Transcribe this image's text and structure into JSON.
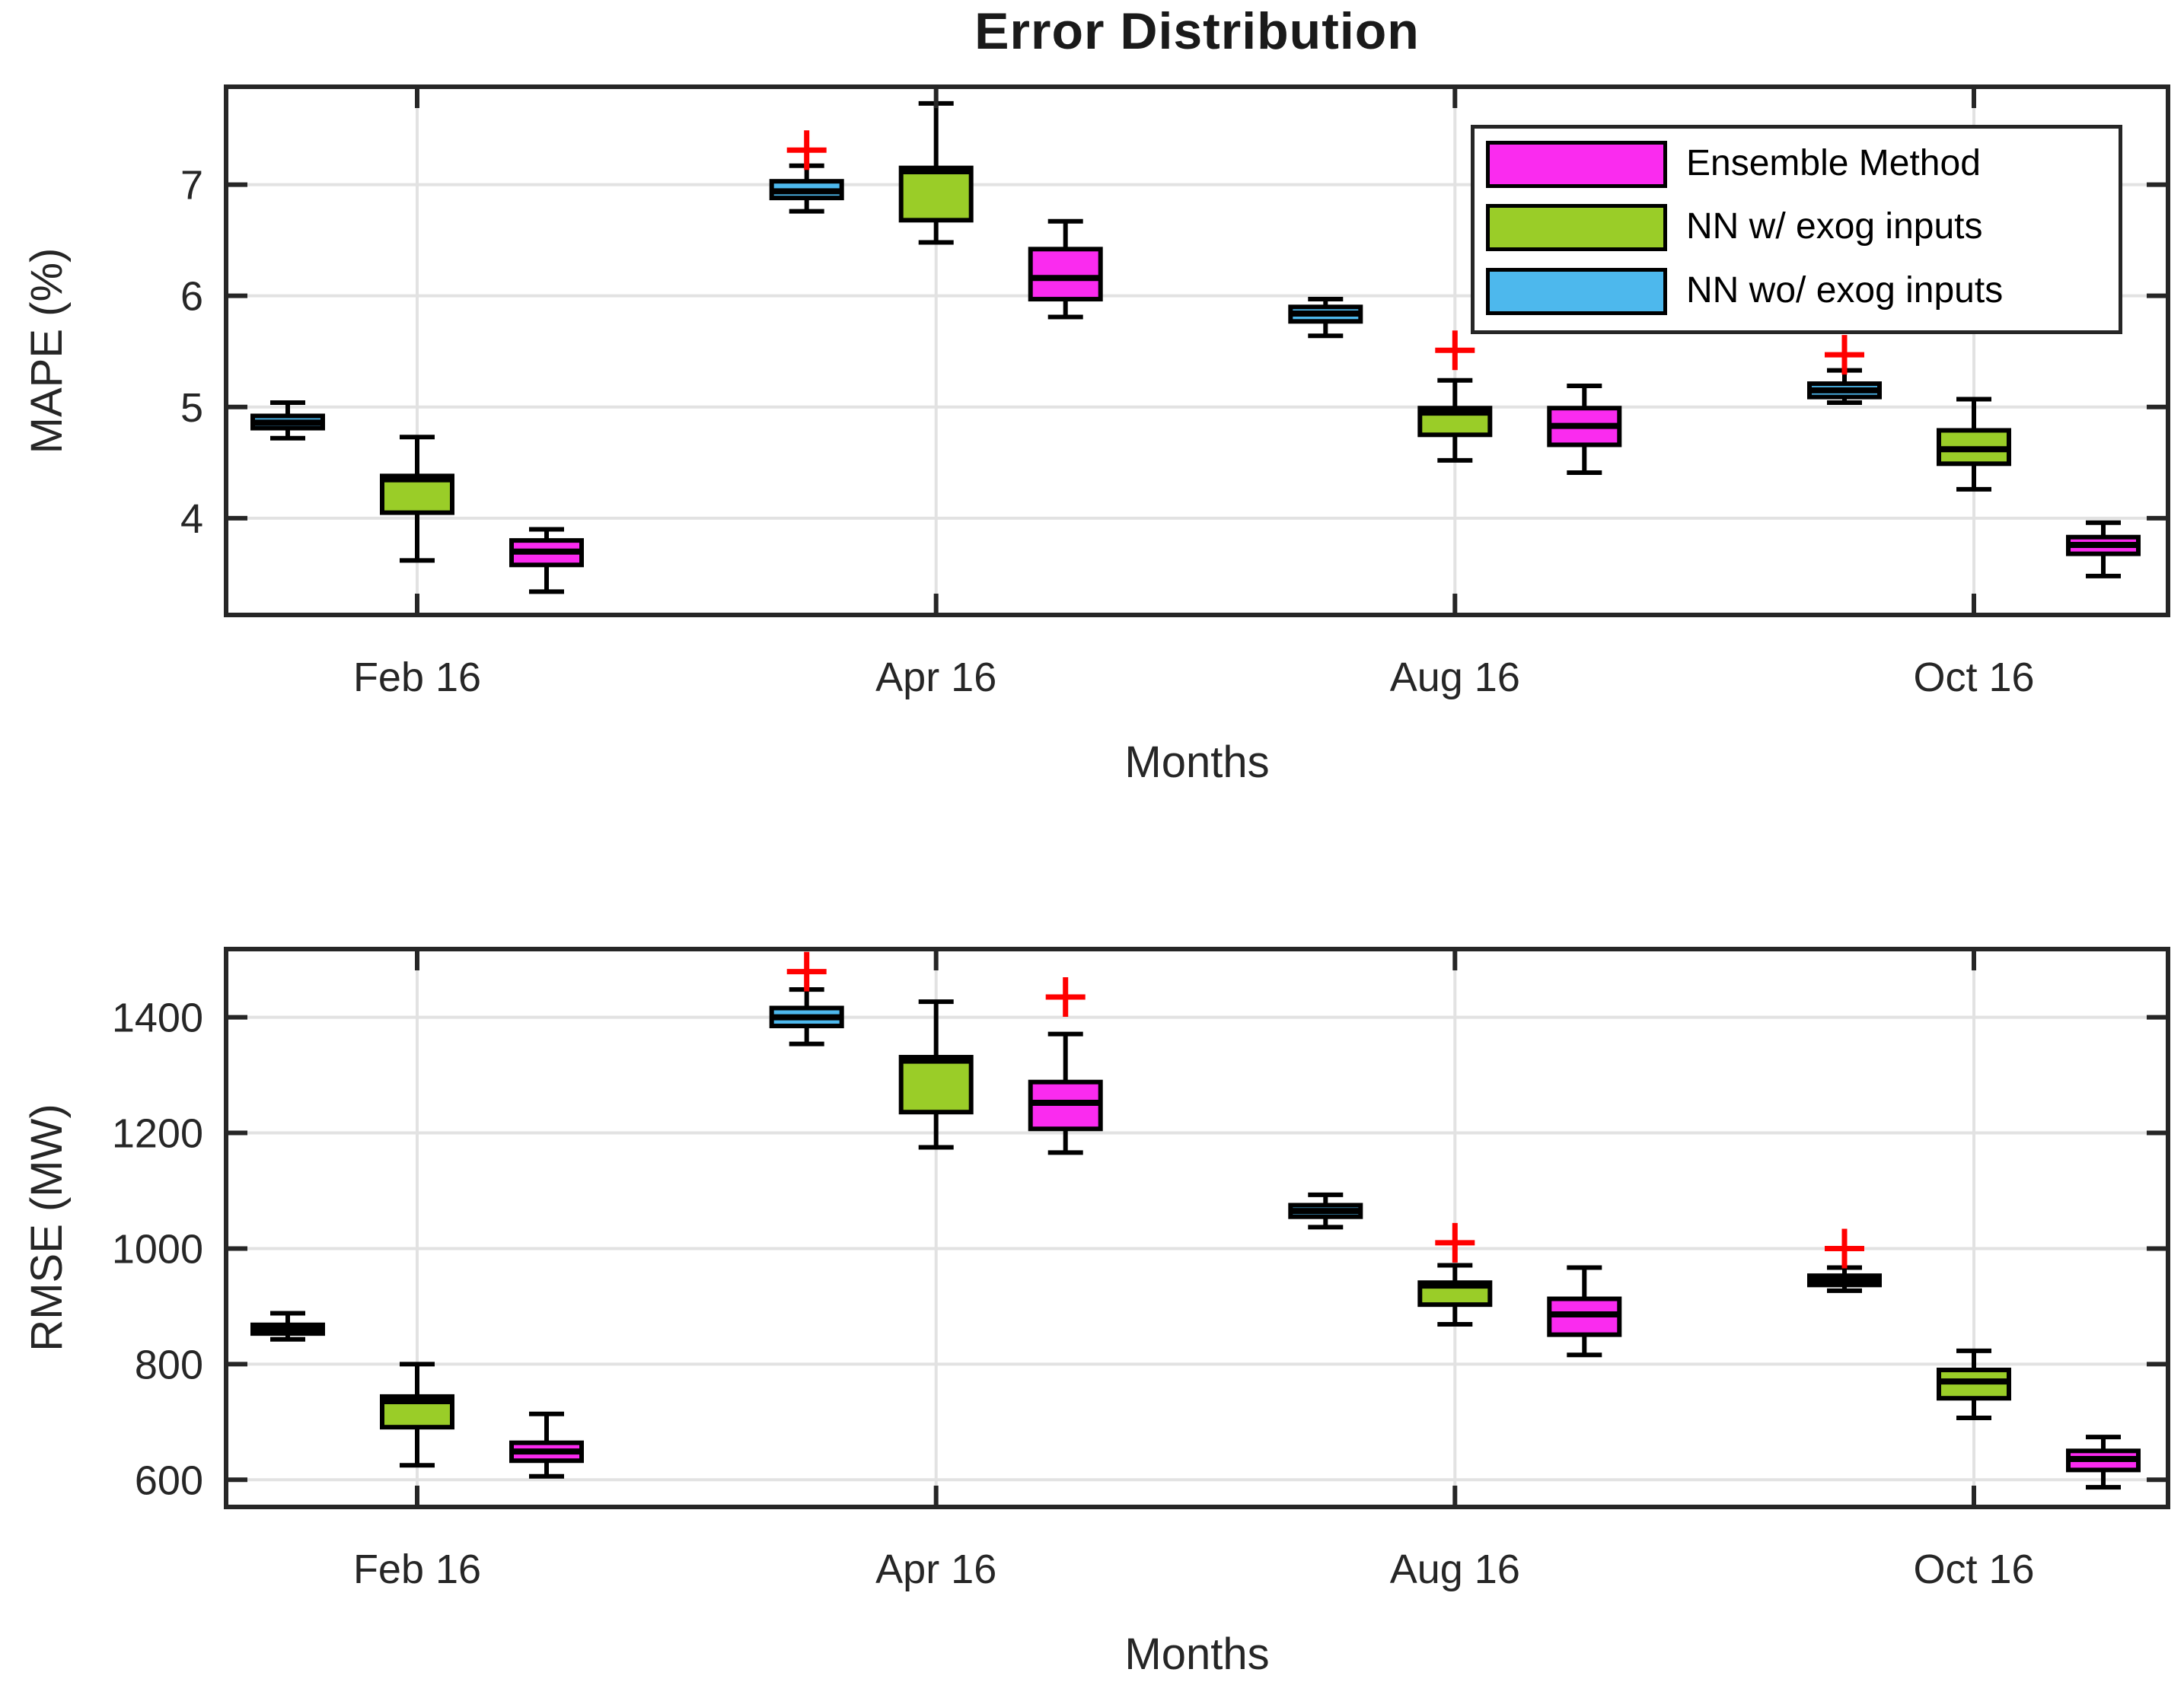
{
  "figure_title": "Error Distribution",
  "legend": {
    "position": "northeast",
    "items": [
      {
        "label": "Ensemble Method",
        "color": "#FA2BEF"
      },
      {
        "label": "NN w/ exog inputs",
        "color": "#9ACD28"
      },
      {
        "label": "NN wo/ exog inputs",
        "color": "#4DB8ED"
      }
    ]
  },
  "colors": {
    "outlier": "#FF0000",
    "box_edge": "#000000",
    "frame": "#262626",
    "grid": "#E2E2E2",
    "text": "#262626"
  },
  "chart_data": [
    {
      "type": "boxplot",
      "title": "Error Distribution",
      "xlabel": "Months",
      "ylabel": "MAPE (%)",
      "categories": [
        "Feb 16",
        "Apr 16",
        "Aug 16",
        "Oct 16"
      ],
      "yticks": [
        4,
        5,
        6,
        7
      ],
      "ylim": [
        3.13,
        7.88
      ],
      "grid": true,
      "series": [
        {
          "name": "NN wo/ exog inputs",
          "color": "#4DB8ED",
          "boxes": [
            {
              "category": "Feb 16",
              "whisker_low": 4.72,
              "q1": 4.81,
              "median": 4.86,
              "q3": 4.92,
              "whisker_high": 5.04,
              "outliers": []
            },
            {
              "category": "Apr 16",
              "whisker_low": 6.76,
              "q1": 6.88,
              "median": 6.94,
              "q3": 7.03,
              "whisker_high": 7.17,
              "outliers": [
                7.31
              ]
            },
            {
              "category": "Aug 16",
              "whisker_low": 5.64,
              "q1": 5.77,
              "median": 5.84,
              "q3": 5.9,
              "whisker_high": 5.97,
              "outliers": []
            },
            {
              "category": "Oct 16",
              "whisker_low": 5.04,
              "q1": 5.09,
              "median": 5.15,
              "q3": 5.21,
              "whisker_high": 5.33,
              "outliers": [
                5.47
              ]
            }
          ]
        },
        {
          "name": "NN w/ exog inputs",
          "color": "#9ACD28",
          "boxes": [
            {
              "category": "Feb 16",
              "whisker_low": 3.62,
              "q1": 4.05,
              "median": 4.35,
              "q3": 4.38,
              "whisker_high": 4.73,
              "outliers": []
            },
            {
              "category": "Apr 16",
              "whisker_low": 6.48,
              "q1": 6.68,
              "median": 7.12,
              "q3": 7.15,
              "whisker_high": 7.73,
              "outliers": []
            },
            {
              "category": "Aug 16",
              "whisker_low": 4.52,
              "q1": 4.75,
              "median": 4.95,
              "q3": 4.99,
              "whisker_high": 5.24,
              "outliers": [
                5.51
              ]
            },
            {
              "category": "Oct 16",
              "whisker_low": 4.26,
              "q1": 4.49,
              "median": 4.62,
              "q3": 4.79,
              "whisker_high": 5.07,
              "outliers": []
            }
          ]
        },
        {
          "name": "Ensemble Method",
          "color": "#FA2BEF",
          "boxes": [
            {
              "category": "Feb 16",
              "whisker_low": 3.34,
              "q1": 3.58,
              "median": 3.7,
              "q3": 3.8,
              "whisker_high": 3.9,
              "outliers": []
            },
            {
              "category": "Apr 16",
              "whisker_low": 5.81,
              "q1": 5.97,
              "median": 6.16,
              "q3": 6.42,
              "whisker_high": 6.67,
              "outliers": []
            },
            {
              "category": "Aug 16",
              "whisker_low": 4.41,
              "q1": 4.66,
              "median": 4.83,
              "q3": 4.99,
              "whisker_high": 5.19,
              "outliers": []
            },
            {
              "category": "Oct 16",
              "whisker_low": 3.48,
              "q1": 3.68,
              "median": 3.76,
              "q3": 3.83,
              "whisker_high": 3.96,
              "outliers": []
            }
          ]
        }
      ]
    },
    {
      "type": "boxplot",
      "title": "",
      "xlabel": "Months",
      "ylabel": "RMSE (MW)",
      "categories": [
        "Feb 16",
        "Apr 16",
        "Aug 16",
        "Oct 16"
      ],
      "yticks": [
        600,
        800,
        1000,
        1200,
        1400
      ],
      "ylim": [
        553,
        1518
      ],
      "grid": true,
      "series": [
        {
          "name": "NN wo/ exog inputs",
          "color": "#4DB8ED",
          "boxes": [
            {
              "category": "Feb 16",
              "whisker_low": 843,
              "q1": 853,
              "median": 861,
              "q3": 868,
              "whisker_high": 888,
              "outliers": []
            },
            {
              "category": "Apr 16",
              "whisker_low": 1354,
              "q1": 1385,
              "median": 1400,
              "q3": 1416,
              "whisker_high": 1448,
              "outliers": [
                1479
              ]
            },
            {
              "category": "Aug 16",
              "whisker_low": 1037,
              "q1": 1055,
              "median": 1065,
              "q3": 1075,
              "whisker_high": 1093,
              "outliers": []
            },
            {
              "category": "Oct 16",
              "whisker_low": 927,
              "q1": 937,
              "median": 946,
              "q3": 953,
              "whisker_high": 967,
              "outliers": [
                1000
              ]
            }
          ]
        },
        {
          "name": "NN w/ exog inputs",
          "color": "#9ACD28",
          "boxes": [
            {
              "category": "Feb 16",
              "whisker_low": 625,
              "q1": 691,
              "median": 736,
              "q3": 744,
              "whisker_high": 800,
              "outliers": []
            },
            {
              "category": "Apr 16",
              "whisker_low": 1175,
              "q1": 1236,
              "median": 1325,
              "q3": 1331,
              "whisker_high": 1427,
              "outliers": []
            },
            {
              "category": "Aug 16",
              "whisker_low": 869,
              "q1": 903,
              "median": 936,
              "q3": 941,
              "whisker_high": 971,
              "outliers": [
                1010
              ]
            },
            {
              "category": "Oct 16",
              "whisker_low": 707,
              "q1": 741,
              "median": 770,
              "q3": 790,
              "whisker_high": 823,
              "outliers": []
            }
          ]
        },
        {
          "name": "Ensemble Method",
          "color": "#FA2BEF",
          "boxes": [
            {
              "category": "Feb 16",
              "whisker_low": 606,
              "q1": 633,
              "median": 649,
              "q3": 664,
              "whisker_high": 714,
              "outliers": []
            },
            {
              "category": "Apr 16",
              "whisker_low": 1166,
              "q1": 1207,
              "median": 1252,
              "q3": 1288,
              "whisker_high": 1371,
              "outliers": [
                1435
              ]
            },
            {
              "category": "Aug 16",
              "whisker_low": 816,
              "q1": 851,
              "median": 886,
              "q3": 913,
              "whisker_high": 967,
              "outliers": []
            },
            {
              "category": "Oct 16",
              "whisker_low": 587,
              "q1": 617,
              "median": 636,
              "q3": 650,
              "whisker_high": 674,
              "outliers": []
            }
          ]
        }
      ]
    }
  ]
}
